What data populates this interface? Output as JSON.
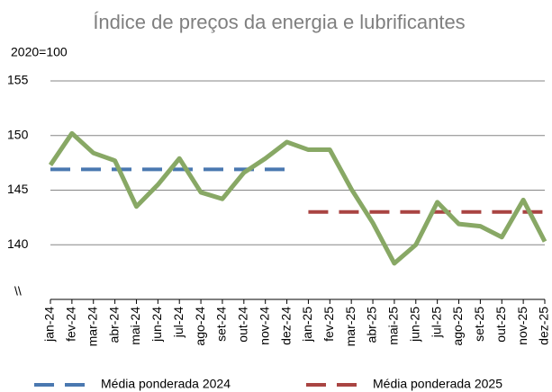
{
  "chart_data": {
    "type": "line",
    "title": "Índice de preços da energia e lubrificantes",
    "y_label": "2020=100",
    "annotation": "\\\\",
    "categories": [
      "jan-24",
      "fev-24",
      "mar-24",
      "abr-24",
      "mai-24",
      "jun-24",
      "jul-24",
      "ago-24",
      "set-24",
      "out-24",
      "nov-24",
      "dez-24",
      "jan-25",
      "fev-25",
      "mar-25",
      "abr-25",
      "mai-25",
      "jun-25",
      "jul-25",
      "ago-25",
      "set-25",
      "out-25",
      "nov-25",
      "dez-25"
    ],
    "values": [
      147.3,
      150.2,
      148.4,
      147.7,
      143.5,
      145.5,
      147.9,
      144.8,
      144.2,
      146.6,
      147.9,
      149.4,
      148.7,
      148.7,
      145.1,
      142.0,
      138.3,
      140.0,
      143.9,
      141.9,
      141.7,
      140.7,
      144.1,
      140.3
    ],
    "color": "#88a865",
    "series": [
      {
        "name": "Média ponderada 2024",
        "color": "#4a78b0",
        "values": [
          146.9,
          146.9,
          146.9,
          146.9,
          146.9,
          146.9,
          146.9,
          146.9,
          146.9,
          146.9,
          146.9,
          146.9,
          null,
          null,
          null,
          null,
          null,
          null,
          null,
          null,
          null,
          null,
          null,
          null
        ]
      },
      {
        "name": "Média ponderada 2025",
        "color": "#a94442",
        "values": [
          null,
          null,
          null,
          null,
          null,
          null,
          null,
          null,
          null,
          null,
          null,
          null,
          143.0,
          143.0,
          143.0,
          143.0,
          143.0,
          143.0,
          143.0,
          143.0,
          143.0,
          143.0,
          143.0,
          143.0
        ]
      }
    ],
    "ylim": [
      135,
      155
    ],
    "yticks": [
      140,
      145,
      150,
      155
    ],
    "grid": true
  }
}
